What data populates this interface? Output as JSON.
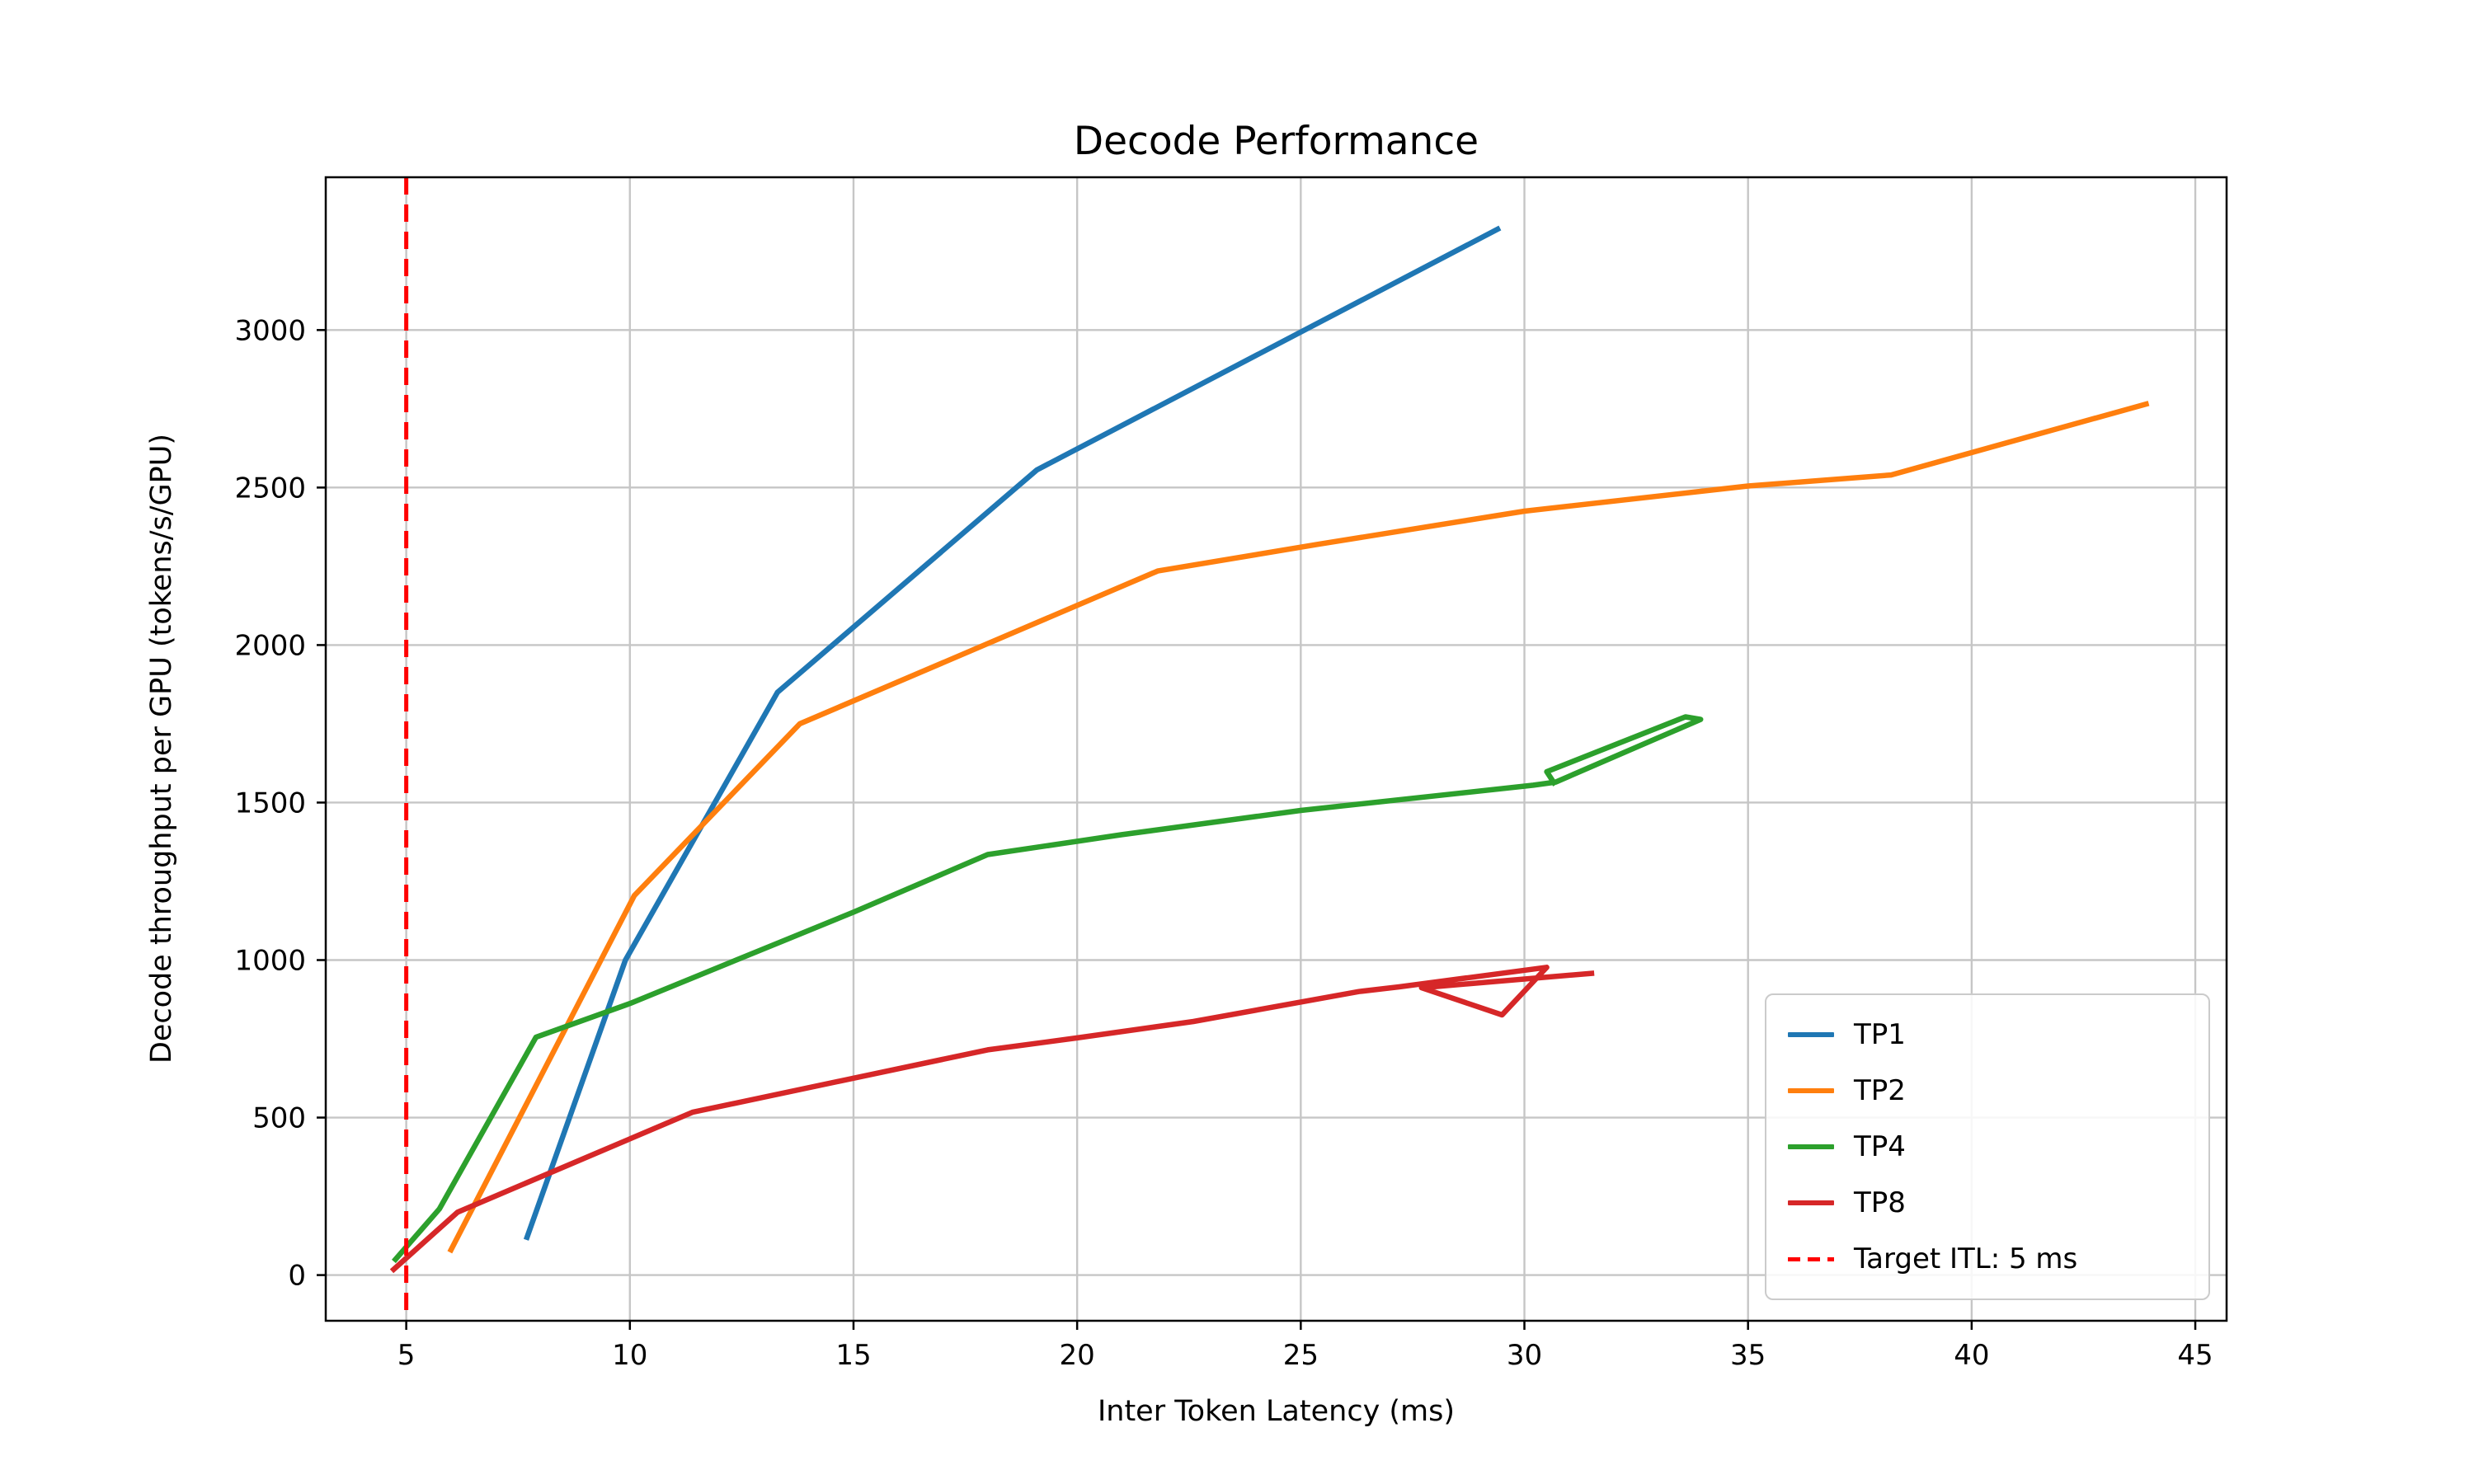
{
  "chart_data": {
    "type": "line",
    "title": "Decode Performance",
    "xlabel": "Inter Token Latency (ms)",
    "ylabel": "Decode throughput per GPU (tokens/s/GPU)",
    "xlim": [
      3.2,
      45.7
    ],
    "ylim": [
      -145,
      3485
    ],
    "xticks": [
      5,
      10,
      15,
      20,
      25,
      30,
      35,
      40,
      45
    ],
    "yticks": [
      0,
      500,
      1000,
      1500,
      2000,
      2500,
      3000
    ],
    "grid": true,
    "grid_color": "#c6c6c6",
    "spine_color": "#000000",
    "legend_position": "lower right",
    "series": [
      {
        "name": "TP1",
        "color": "#1f77b4",
        "points": [
          [
            7.7,
            120
          ],
          [
            9.9,
            1000
          ],
          [
            13.3,
            1850
          ],
          [
            19.1,
            2556
          ],
          [
            29.4,
            3320
          ]
        ]
      },
      {
        "name": "TP2",
        "color": "#ff7f0e",
        "points": [
          [
            6.0,
            80
          ],
          [
            10.1,
            1205
          ],
          [
            13.8,
            1750
          ],
          [
            21.8,
            2235
          ],
          [
            25.4,
            2320
          ],
          [
            30,
            2425
          ],
          [
            35,
            2505
          ],
          [
            38.2,
            2540
          ],
          [
            43.9,
            2765
          ]
        ]
      },
      {
        "name": "TP4",
        "color": "#2ca02c",
        "points": [
          [
            4.76,
            50
          ],
          [
            5.74,
            210
          ],
          [
            7.9,
            755
          ],
          [
            10,
            862
          ],
          [
            15,
            1152
          ],
          [
            18,
            1335
          ],
          [
            21,
            1398
          ],
          [
            25,
            1475
          ],
          [
            30.2,
            1555
          ],
          [
            30.7,
            1565
          ],
          [
            33.94,
            1764
          ],
          [
            33.6,
            1772
          ],
          [
            30.5,
            1598
          ],
          [
            30.66,
            1563
          ]
        ]
      },
      {
        "name": "TP8",
        "color": "#d62728",
        "points": [
          [
            4.72,
            18
          ],
          [
            6.15,
            200
          ],
          [
            11.4,
            517
          ],
          [
            18,
            715
          ],
          [
            20,
            753
          ],
          [
            22.6,
            805
          ],
          [
            26.3,
            900
          ],
          [
            27.2,
            915
          ],
          [
            30.5,
            977
          ],
          [
            29.5,
            826
          ],
          [
            27.7,
            912
          ],
          [
            31.5,
            958
          ]
        ]
      }
    ],
    "target_line": {
      "x": 5,
      "label": "Target ITL: 5 ms",
      "color": "#ff0000",
      "style": "dashed"
    }
  }
}
